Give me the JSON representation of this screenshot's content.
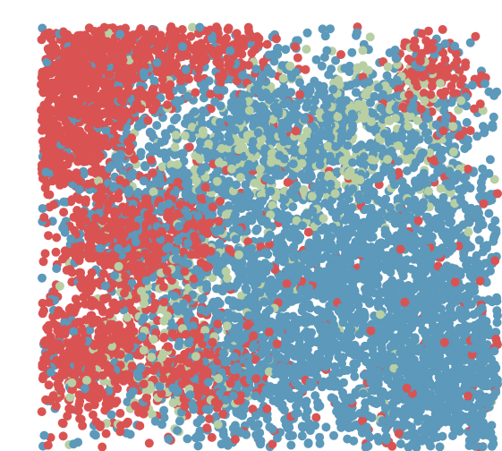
{
  "chart_data": {
    "type": "scatter",
    "title": "",
    "xlabel": "",
    "ylabel": "",
    "axes_visible": false,
    "grid": false,
    "legend": "none",
    "point_opacity": 0.72,
    "series": [
      {
        "key": "red",
        "color": "#cc1111",
        "approx_count": 2600,
        "clusters": [
          {
            "cx": 0.12,
            "cy": 0.1,
            "sx": 0.09,
            "sy": 0.07,
            "w": 0.26
          },
          {
            "cx": 0.06,
            "cy": 0.28,
            "sx": 0.05,
            "sy": 0.08,
            "w": 0.12
          },
          {
            "cx": 0.22,
            "cy": 0.5,
            "sx": 0.08,
            "sy": 0.07,
            "w": 0.18
          },
          {
            "cx": 0.1,
            "cy": 0.78,
            "sx": 0.08,
            "sy": 0.09,
            "w": 0.2
          },
          {
            "cx": 0.35,
            "cy": 0.06,
            "sx": 0.08,
            "sy": 0.04,
            "w": 0.08
          },
          {
            "cx": 0.35,
            "cy": 0.82,
            "sx": 0.07,
            "sy": 0.06,
            "w": 0.08
          },
          {
            "cx": 0.85,
            "cy": 0.12,
            "sx": 0.05,
            "sy": 0.05,
            "w": 0.04
          },
          {
            "cx": 0.5,
            "cy": 0.5,
            "sx": 0.3,
            "sy": 0.3,
            "w": 0.04
          }
        ]
      },
      {
        "key": "sage",
        "color": "#9ebd82",
        "approx_count": 700,
        "clusters": [
          {
            "cx": 0.55,
            "cy": 0.3,
            "sx": 0.16,
            "sy": 0.08,
            "w": 0.45
          },
          {
            "cx": 0.76,
            "cy": 0.17,
            "sx": 0.08,
            "sy": 0.05,
            "w": 0.15
          },
          {
            "cx": 0.32,
            "cy": 0.6,
            "sx": 0.1,
            "sy": 0.1,
            "w": 0.15
          },
          {
            "cx": 0.25,
            "cy": 0.82,
            "sx": 0.1,
            "sy": 0.07,
            "w": 0.15
          },
          {
            "cx": 0.5,
            "cy": 0.5,
            "sx": 0.3,
            "sy": 0.3,
            "w": 0.1
          }
        ]
      },
      {
        "key": "blue",
        "color": "#1e72a0",
        "approx_count": 4200,
        "clusters": [
          {
            "cx": 0.82,
            "cy": 0.58,
            "sx": 0.13,
            "sy": 0.14,
            "w": 0.24
          },
          {
            "cx": 0.86,
            "cy": 0.86,
            "sx": 0.12,
            "sy": 0.09,
            "w": 0.18
          },
          {
            "cx": 0.55,
            "cy": 0.62,
            "sx": 0.14,
            "sy": 0.14,
            "w": 0.16
          },
          {
            "cx": 0.6,
            "cy": 0.22,
            "sx": 0.18,
            "sy": 0.08,
            "w": 0.14
          },
          {
            "cx": 0.35,
            "cy": 0.42,
            "sx": 0.15,
            "sy": 0.14,
            "w": 0.12
          },
          {
            "cx": 0.45,
            "cy": 0.85,
            "sx": 0.12,
            "sy": 0.08,
            "w": 0.08
          },
          {
            "cx": 0.5,
            "cy": 0.5,
            "sx": 0.35,
            "sy": 0.35,
            "w": 0.08
          }
        ]
      }
    ]
  }
}
